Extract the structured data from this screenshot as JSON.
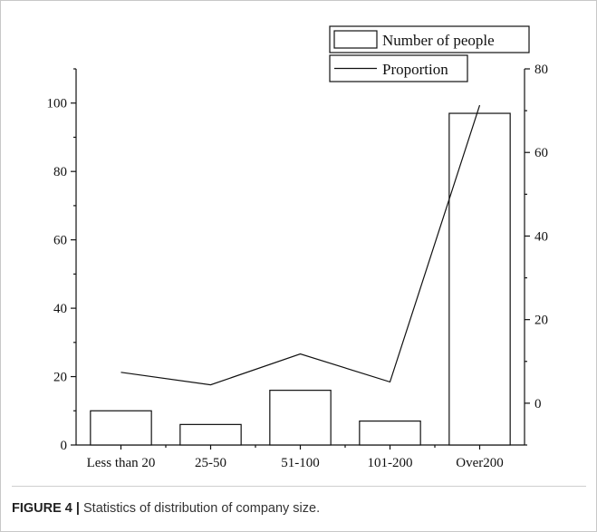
{
  "caption": {
    "label": "FIGURE 4 |",
    "text": "Statistics of distribution of company size."
  },
  "chart_data": {
    "type": "bar",
    "categories": [
      "Less than 20",
      "25-50",
      "51-100",
      "101-200",
      "Over200"
    ],
    "series": [
      {
        "name": "Number of people",
        "type": "bar",
        "axis": "left",
        "values": [
          10,
          6,
          16,
          7,
          97
        ]
      },
      {
        "name": "Proportion",
        "type": "line",
        "axis": "right",
        "values": [
          7.4,
          4.4,
          11.8,
          5.1,
          71.3
        ]
      }
    ],
    "left_axis": {
      "ylim": [
        0,
        110
      ],
      "ticks": [
        0,
        20,
        40,
        60,
        80,
        100
      ]
    },
    "right_axis": {
      "ylim": [
        -10,
        80
      ],
      "ticks": [
        0,
        20,
        40,
        60,
        80
      ]
    },
    "legend": [
      "Number of people",
      "Proportion"
    ],
    "legend_position": "top-right",
    "grid": false,
    "title": "",
    "xlabel": "",
    "ylabel": ""
  }
}
